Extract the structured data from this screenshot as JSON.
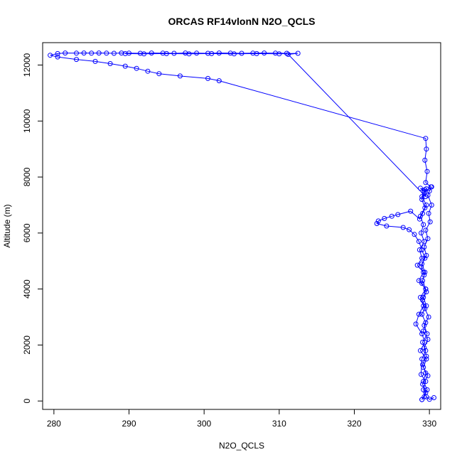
{
  "chart_data": {
    "type": "line",
    "title": "ORCAS RF14vlonN N2O_QCLS",
    "xlabel": "N2O_QCLS",
    "ylabel": "Altitude (m)",
    "xlim": [
      278.5,
      331.5
    ],
    "ylim": [
      -300,
      12800
    ],
    "xticks": [
      280,
      290,
      300,
      310,
      320,
      330
    ],
    "yticks": [
      0,
      2000,
      4000,
      6000,
      8000,
      10000,
      12000
    ],
    "grid": false,
    "legend": "none",
    "marker": "open-circle",
    "color": "#0000ff",
    "series": [
      {
        "points": [
          [
            311.0,
            12420
          ],
          [
            309.5,
            12425
          ],
          [
            308.0,
            12430
          ],
          [
            306.5,
            12425
          ],
          [
            305.0,
            12420
          ],
          [
            303.5,
            12425
          ],
          [
            302.0,
            12430
          ],
          [
            300.5,
            12420
          ],
          [
            299.0,
            12425
          ],
          [
            297.5,
            12430
          ],
          [
            296.0,
            12420
          ],
          [
            294.5,
            12425
          ],
          [
            293.0,
            12430
          ],
          [
            291.5,
            12420
          ],
          [
            290.0,
            12425
          ],
          [
            289.0,
            12430
          ],
          [
            288.0,
            12420
          ],
          [
            287.0,
            12425
          ],
          [
            286.0,
            12430
          ],
          [
            285.0,
            12425
          ],
          [
            284.0,
            12430
          ],
          [
            283.0,
            12425
          ],
          [
            281.5,
            12430
          ],
          [
            280.5,
            12410
          ],
          [
            279.5,
            12350
          ],
          [
            280.5,
            12290
          ],
          [
            283.0,
            12200
          ],
          [
            285.5,
            12130
          ],
          [
            287.5,
            12050
          ],
          [
            289.5,
            11960
          ],
          [
            291.0,
            11880
          ],
          [
            292.5,
            11780
          ],
          [
            294.0,
            11690
          ],
          [
            296.8,
            11610
          ],
          [
            300.5,
            11520
          ],
          [
            302.0,
            11440
          ],
          [
            329.5,
            9380
          ],
          [
            329.6,
            9000
          ],
          [
            329.4,
            8600
          ],
          [
            329.7,
            8200
          ],
          [
            329.5,
            7800
          ],
          [
            330.2,
            7650
          ],
          [
            329.8,
            7350
          ],
          [
            330.3,
            7000
          ],
          [
            329.9,
            6700
          ],
          [
            330.1,
            6400
          ],
          [
            329.5,
            6100
          ],
          [
            329.8,
            5800
          ],
          [
            329.3,
            5500
          ],
          [
            329.6,
            5200
          ],
          [
            329.0,
            4900
          ],
          [
            329.4,
            4600
          ],
          [
            329.1,
            4300
          ],
          [
            329.5,
            4000
          ],
          [
            329.2,
            3700
          ],
          [
            329.6,
            3400
          ],
          [
            329.0,
            3100
          ],
          [
            329.5,
            2800
          ],
          [
            329.2,
            2500
          ],
          [
            329.8,
            2200
          ],
          [
            329.3,
            1900
          ],
          [
            329.6,
            1600
          ],
          [
            329.1,
            1300
          ],
          [
            329.5,
            1000
          ],
          [
            329.2,
            700
          ],
          [
            329.7,
            400
          ],
          [
            329.3,
            150
          ],
          [
            329.0,
            50
          ]
        ]
      },
      {
        "points": [
          [
            329.0,
            50
          ],
          [
            329.5,
            300
          ],
          [
            329.1,
            600
          ],
          [
            329.8,
            900
          ],
          [
            329.2,
            1200
          ],
          [
            329.6,
            1500
          ],
          [
            328.8,
            1800
          ],
          [
            329.4,
            2100
          ],
          [
            329.0,
            2400
          ],
          [
            328.2,
            2750
          ],
          [
            328.6,
            3100
          ],
          [
            329.2,
            3400
          ],
          [
            328.8,
            3700
          ],
          [
            329.5,
            4000
          ],
          [
            328.6,
            4300
          ],
          [
            329.2,
            4600
          ],
          [
            328.4,
            4850
          ],
          [
            329.0,
            5100
          ],
          [
            328.7,
            5400
          ],
          [
            329.3,
            5700
          ],
          [
            328.9,
            6000
          ],
          [
            329.2,
            6300
          ],
          [
            328.8,
            6600
          ],
          [
            329.4,
            6900
          ],
          [
            329.0,
            7200
          ],
          [
            329.3,
            7500
          ],
          [
            328.8,
            7600
          ],
          [
            329.4,
            7550
          ],
          [
            329.0,
            7300
          ],
          [
            329.6,
            7000
          ],
          [
            329.1,
            6700
          ],
          [
            328.7,
            6500
          ],
          [
            327.5,
            6780
          ],
          [
            325.8,
            6660
          ],
          [
            325.0,
            6600
          ],
          [
            324.0,
            6520
          ],
          [
            323.2,
            6430
          ],
          [
            323.0,
            6340
          ],
          [
            324.3,
            6250
          ],
          [
            326.5,
            6200
          ],
          [
            327.3,
            6120
          ],
          [
            328.0,
            5950
          ],
          [
            328.6,
            5700
          ],
          [
            329.0,
            5400
          ],
          [
            329.4,
            5100
          ],
          [
            328.9,
            4800
          ],
          [
            329.3,
            4500
          ],
          [
            329.0,
            4200
          ],
          [
            329.6,
            3900
          ],
          [
            329.1,
            3600
          ],
          [
            329.4,
            3300
          ],
          [
            329.9,
            3000
          ],
          [
            329.3,
            2700
          ],
          [
            329.7,
            2400
          ],
          [
            329.1,
            2100
          ],
          [
            329.5,
            1800
          ],
          [
            329.0,
            1500
          ],
          [
            328.9,
            950
          ],
          [
            329.5,
            700
          ],
          [
            329.2,
            400
          ],
          [
            329.6,
            150
          ],
          [
            330.0,
            60
          ],
          [
            330.6,
            120
          ]
        ]
      },
      {
        "points": [
          [
            330.3,
            7650
          ],
          [
            330.0,
            7500
          ],
          [
            329.6,
            7580
          ],
          [
            329.3,
            7450
          ],
          [
            329.5,
            7300
          ],
          [
            311.2,
            12380
          ],
          [
            312.5,
            12420
          ],
          [
            310.0,
            12400
          ],
          [
            307.0,
            12410
          ],
          [
            304.0,
            12400
          ],
          [
            301.0,
            12410
          ],
          [
            298.0,
            12400
          ],
          [
            295.0,
            12410
          ],
          [
            292.0,
            12400
          ],
          [
            289.5,
            12410
          ]
        ]
      }
    ]
  }
}
